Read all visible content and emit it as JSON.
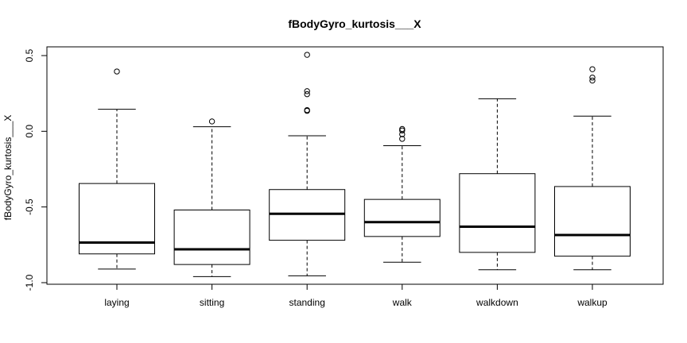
{
  "chart_data": {
    "type": "boxplot",
    "title": "fBodyGyro_kurtosis___X",
    "xlabel": "",
    "ylabel": "fBodyGyro_kurtosis___X",
    "ylim": [
      -1.0,
      0.5
    ],
    "yticks": [
      "-1.0",
      "-0.5",
      "0.0",
      "0.5"
    ],
    "grid": false,
    "categories": [
      "laying",
      "sitting",
      "standing",
      "walk",
      "walkdown",
      "walkup"
    ],
    "boxes": [
      {
        "category": "laying",
        "whisker_low": -0.91,
        "q1": -0.81,
        "median": -0.735,
        "q3": -0.345,
        "whisker_high": 0.145,
        "outliers": [
          0.395
        ]
      },
      {
        "category": "sitting",
        "whisker_low": -0.96,
        "q1": -0.88,
        "median": -0.78,
        "q3": -0.52,
        "whisker_high": 0.03,
        "outliers": [
          0.065
        ]
      },
      {
        "category": "standing",
        "whisker_low": -0.955,
        "q1": -0.72,
        "median": -0.545,
        "q3": -0.385,
        "whisker_high": -0.03,
        "outliers": [
          0.505,
          0.265,
          0.245,
          0.14,
          0.135
        ]
      },
      {
        "category": "walk",
        "whisker_low": -0.865,
        "q1": -0.695,
        "median": -0.6,
        "q3": -0.45,
        "whisker_high": -0.095,
        "outliers": [
          0.015,
          0.005,
          -0.02,
          -0.05
        ]
      },
      {
        "category": "walkdown",
        "whisker_low": -0.915,
        "q1": -0.8,
        "median": -0.63,
        "q3": -0.28,
        "whisker_high": 0.215,
        "outliers": []
      },
      {
        "category": "walkup",
        "whisker_low": -0.915,
        "q1": -0.825,
        "median": -0.685,
        "q3": -0.365,
        "whisker_high": 0.1,
        "outliers": [
          0.41,
          0.355,
          0.335
        ]
      }
    ]
  }
}
